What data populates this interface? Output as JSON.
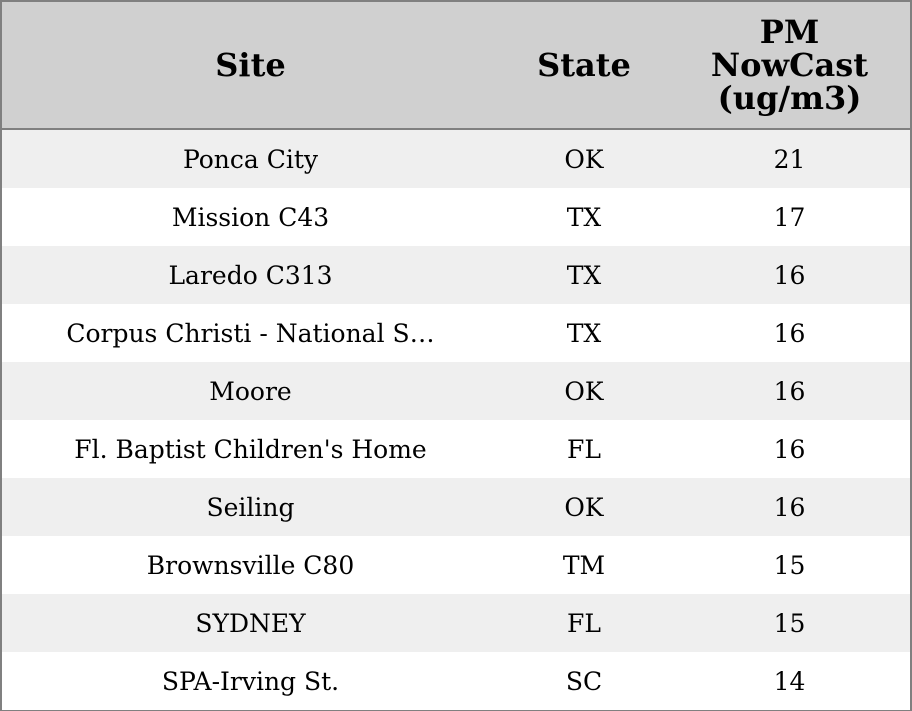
{
  "table": {
    "header": [
      "Site",
      "State",
      "PM NowCast (ug/m3)"
    ],
    "rows": [
      [
        "Ponca City",
        "OK",
        21
      ],
      [
        "Mission C43",
        "TX",
        17
      ],
      [
        "Laredo C313",
        "TX",
        16
      ],
      [
        "Corpus Christi - National S…",
        "TX",
        16
      ],
      [
        "Moore",
        "OK",
        16
      ],
      [
        "Fl. Baptist Children's Home",
        "FL",
        16
      ],
      [
        "Seiling",
        "OK",
        16
      ],
      [
        "Brownsville C80",
        "TM",
        15
      ],
      [
        "SYDNEY",
        "FL",
        15
      ],
      [
        "SPA-Irving St.",
        "SC",
        14
      ]
    ]
  }
}
